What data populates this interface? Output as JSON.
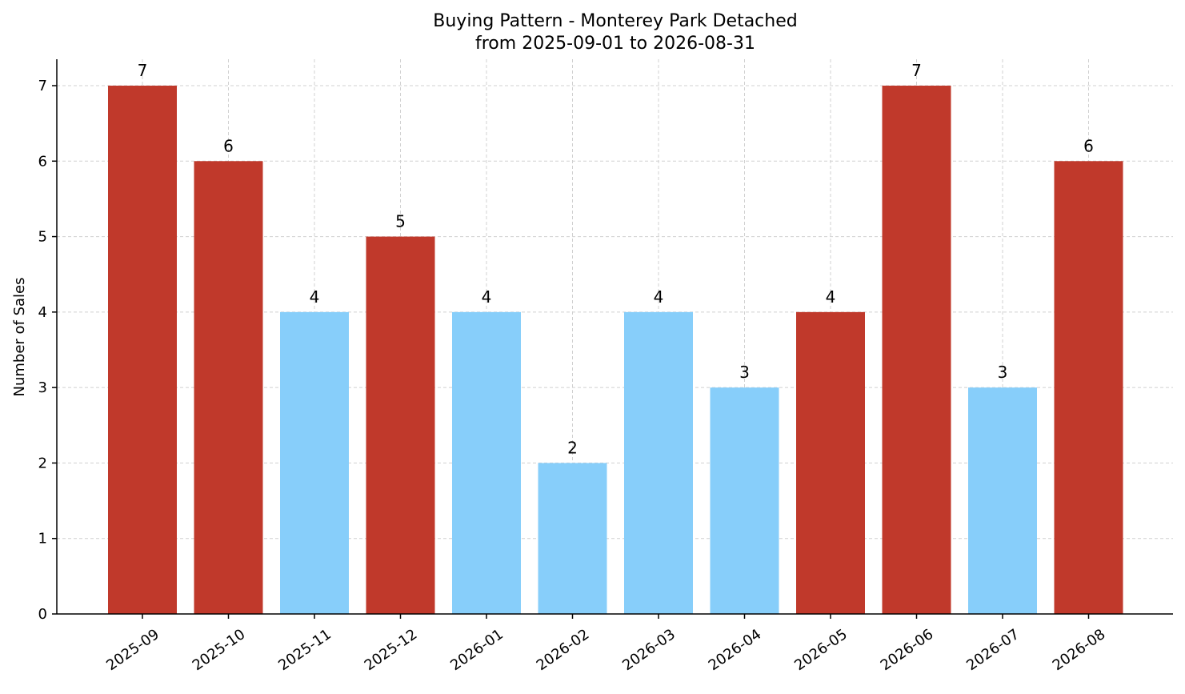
{
  "chart_data": {
    "type": "bar",
    "title": "Buying Pattern - Monterey Park Detached",
    "subtitle": "from 2025-09-01 to 2026-08-31",
    "xlabel": "",
    "ylabel": "Number of Sales",
    "categories": [
      "2025-09",
      "2025-10",
      "2025-11",
      "2025-12",
      "2026-01",
      "2026-02",
      "2026-03",
      "2026-04",
      "2026-05",
      "2026-06",
      "2026-07",
      "2026-08"
    ],
    "values": [
      7,
      6,
      4,
      5,
      4,
      2,
      4,
      3,
      4,
      7,
      3,
      6
    ],
    "bar_colors": [
      "#c0392b",
      "#c0392b",
      "#87cefa",
      "#c0392b",
      "#87cefa",
      "#87cefa",
      "#87cefa",
      "#87cefa",
      "#c0392b",
      "#c0392b",
      "#87cefa",
      "#c0392b"
    ],
    "ylim": [
      0,
      7.35
    ],
    "yticks": [
      0,
      1,
      2,
      3,
      4,
      5,
      6,
      7
    ],
    "grid": true,
    "data_labels": true
  }
}
